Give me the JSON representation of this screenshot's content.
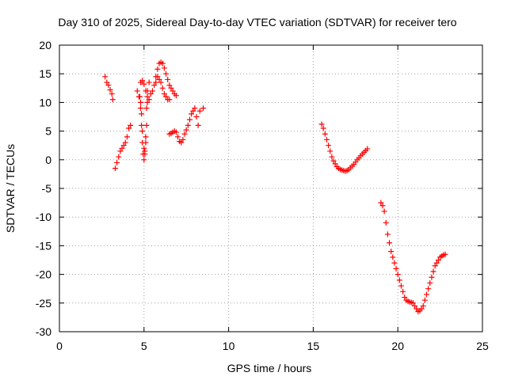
{
  "chart_data": {
    "type": "scatter",
    "title": "Day 310 of 2025, Sidereal Day-to-day VTEC variation (SDTVAR) for receiver tero",
    "xlabel": "GPS time / hours",
    "ylabel": "SDTVAR / TECUs",
    "xlim": [
      0,
      25
    ],
    "ylim": [
      -30,
      20
    ],
    "x_ticks": [
      "0",
      "5",
      "10",
      "15",
      "20",
      "25"
    ],
    "y_ticks": [
      "20",
      "15",
      "10",
      "5",
      "0",
      "-5",
      "-10",
      "-15",
      "-20",
      "-25",
      "-30"
    ],
    "grid": true,
    "marker": "plus",
    "color": "#ff0000",
    "x": [
      2.7,
      2.8,
      2.9,
      3.0,
      3.1,
      3.15,
      3.3,
      3.4,
      3.5,
      3.6,
      3.7,
      3.8,
      3.9,
      4.0,
      4.1,
      4.2,
      4.6,
      4.7,
      4.8,
      4.85,
      4.9,
      4.95,
      5.0,
      5.05,
      5.1,
      5.15,
      5.2,
      5.3,
      5.5,
      5.6,
      5.7,
      5.8,
      5.9,
      6.0,
      6.1,
      6.2,
      6.3,
      6.4,
      6.5,
      6.6,
      6.7,
      6.8,
      6.9,
      5.7,
      5.8,
      5.9,
      6.0,
      6.1,
      6.2,
      6.3,
      6.4,
      6.5,
      6.5,
      6.6,
      6.7,
      6.8,
      6.9,
      7.0,
      7.1,
      7.2,
      7.3,
      7.4,
      7.5,
      7.6,
      7.7,
      7.8,
      7.9,
      8.0,
      8.1,
      8.2,
      8.3,
      8.5,
      4.75,
      4.8,
      4.85,
      4.9,
      5.0,
      5.05,
      5.1,
      5.15,
      5.2,
      4.8,
      4.9,
      5.0,
      5.1,
      5.2,
      5.3,
      5.4,
      15.5,
      15.6,
      15.7,
      15.8,
      15.9,
      16.0,
      16.1,
      16.2,
      16.3,
      16.4,
      16.5,
      16.6,
      16.7,
      16.8,
      16.9,
      17.0,
      17.1,
      17.2,
      17.3,
      17.4,
      17.5,
      17.6,
      17.7,
      17.8,
      17.9,
      18.0,
      18.1,
      18.2,
      19.0,
      19.1,
      19.2,
      19.3,
      19.4,
      19.5,
      19.6,
      19.7,
      19.8,
      19.9,
      20.0,
      20.1,
      20.2,
      20.3,
      20.4,
      20.5,
      20.6,
      20.7,
      20.8,
      20.9,
      21.0,
      21.1,
      21.2,
      21.3,
      21.4,
      21.5,
      21.6,
      21.7,
      21.8,
      21.9,
      22.0,
      22.1,
      22.2,
      22.3,
      22.4,
      22.5,
      22.6,
      22.7,
      22.8
    ],
    "y": [
      14.5,
      13.5,
      13.0,
      12.2,
      11.5,
      10.5,
      -1.5,
      -0.5,
      0.5,
      1.5,
      2.0,
      2.5,
      3.0,
      4.0,
      5.5,
      6.0,
      12.0,
      11.0,
      9.0,
      6.0,
      3.0,
      1.0,
      0.0,
      1.5,
      4.0,
      9.0,
      12.0,
      13.5,
      12.0,
      13.0,
      14.5,
      15.8,
      16.8,
      17.0,
      16.8,
      16.0,
      15.0,
      14.0,
      13.0,
      12.5,
      12.0,
      11.5,
      11.2,
      13.5,
      14.5,
      14.0,
      13.5,
      12.5,
      11.5,
      11.0,
      10.5,
      10.5,
      4.5,
      4.6,
      4.8,
      5.0,
      4.8,
      4.0,
      3.2,
      3.0,
      3.5,
      4.5,
      5.2,
      6.0,
      7.0,
      8.0,
      8.5,
      9.0,
      7.5,
      6.0,
      8.5,
      9.0,
      11.0,
      10.0,
      8.0,
      5.0,
      2.0,
      1.0,
      3.0,
      6.0,
      10.0,
      13.5,
      13.8,
      13.2,
      12.0,
      11.0,
      10.5,
      11.5,
      6.2,
      5.5,
      4.5,
      3.5,
      2.5,
      1.5,
      0.5,
      -0.2,
      -0.7,
      -1.2,
      -1.5,
      -1.7,
      -1.8,
      -1.9,
      -2.0,
      -1.9,
      -1.7,
      -1.4,
      -1.1,
      -0.8,
      -0.4,
      0.0,
      0.3,
      0.7,
      1.0,
      1.3,
      1.6,
      1.9,
      -7.5,
      -8.0,
      -9.0,
      -11.0,
      -13.0,
      -14.5,
      -16.0,
      -17.0,
      -18.0,
      -19.0,
      -20.0,
      -21.0,
      -22.0,
      -23.0,
      -24.0,
      -24.5,
      -24.7,
      -24.8,
      -24.9,
      -25.0,
      -25.5,
      -26.0,
      -26.5,
      -26.3,
      -26.0,
      -25.5,
      -24.5,
      -23.5,
      -22.5,
      -21.5,
      -20.5,
      -19.5,
      -18.5,
      -18.0,
      -17.5,
      -17.0,
      -16.8,
      -16.6,
      -16.5
    ]
  }
}
